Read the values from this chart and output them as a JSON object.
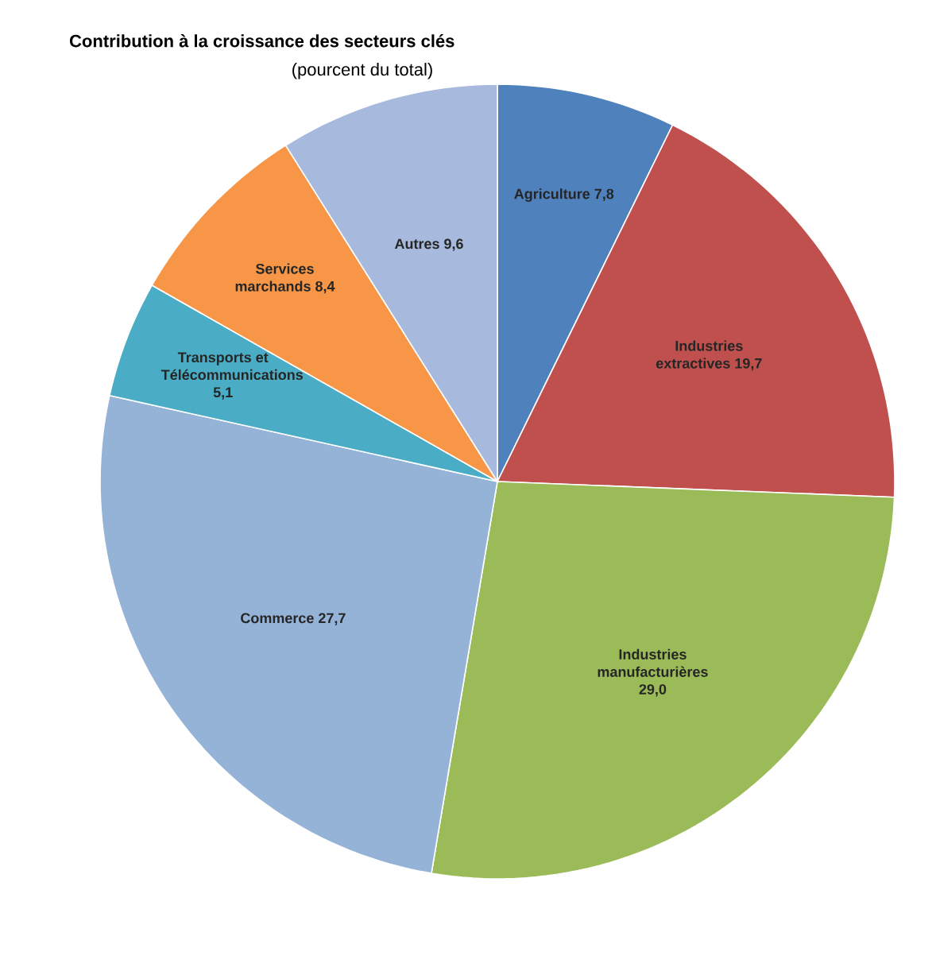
{
  "chart_data": {
    "type": "pie",
    "title": "Contribution à la croissance des secteurs clés",
    "subtitle": "(pourcent du total)",
    "categories": [
      "Agriculture",
      "Industries extractives",
      "Industries manufacturières",
      "Commerce",
      "Transports et Télécommunications",
      "Services marchands",
      "Autres"
    ],
    "values": [
      7.8,
      19.7,
      29.0,
      27.7,
      5.1,
      8.4,
      9.6
    ],
    "value_labels": [
      "7,8",
      "19,7",
      "29,0",
      "27,7",
      "5,1",
      "8,4",
      "9,6"
    ],
    "colors": [
      "#4f81bd",
      "#c0504d",
      "#9bbb59",
      "#95b3d7",
      "#4bacc6",
      "#f79646",
      "#a7b9dc"
    ]
  }
}
